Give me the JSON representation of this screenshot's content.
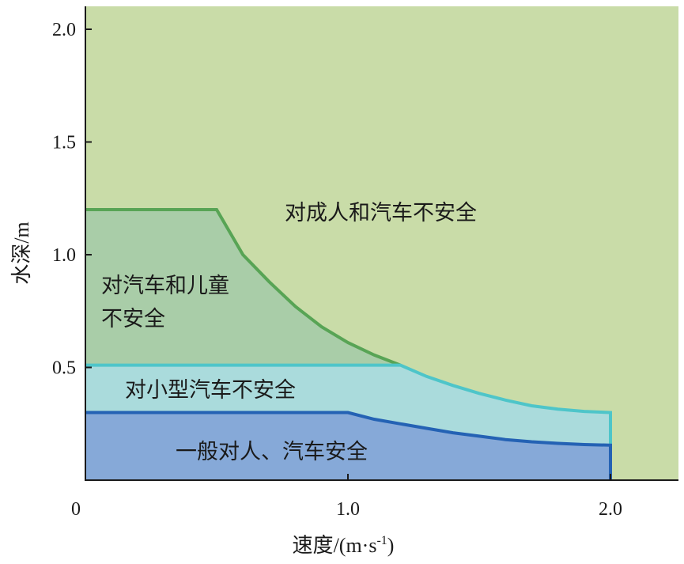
{
  "chart_data": {
    "type": "area",
    "xlabel_prefix": "速度",
    "xlabel_unit": "/(m·s",
    "xlabel_sup": "-1",
    "xlabel_close": ")",
    "ylabel_prefix": "水深",
    "ylabel_unit": "/m",
    "xlim": [
      0,
      2.25
    ],
    "ylim": [
      0,
      2.1
    ],
    "x_ticks": [
      {
        "value": 0,
        "label": "0"
      },
      {
        "value": 1.0,
        "label": "1.0"
      },
      {
        "value": 2.0,
        "label": "2.0"
      }
    ],
    "y_ticks": [
      {
        "value": 0.5,
        "label": "0.5"
      },
      {
        "value": 1.0,
        "label": "1.0"
      },
      {
        "value": 1.5,
        "label": "1.5"
      },
      {
        "value": 2.0,
        "label": "2.0"
      }
    ],
    "grid": false,
    "colors": {
      "background_region": "#c9dca8",
      "children_region": "#a9cda8",
      "small_car_region": "#aadbdc",
      "safe_region": "#86a9d8",
      "adult_boundary": "#58a455",
      "small_car_boundary": "#4ec5c9",
      "safe_boundary": "#2462b4"
    },
    "boundaries": [
      {
        "name": "adult",
        "x": [
          0,
          0.5,
          0.55,
          0.6,
          0.7,
          0.8,
          0.9,
          1.0,
          1.1,
          1.2
        ],
        "y": [
          1.2,
          1.2,
          1.1,
          1.0,
          0.88,
          0.77,
          0.68,
          0.61,
          0.555,
          0.51
        ]
      },
      {
        "name": "small_car",
        "x": [
          0,
          1.2,
          1.3,
          1.4,
          1.5,
          1.6,
          1.7,
          1.8,
          1.9,
          2.0
        ],
        "y": [
          0.51,
          0.51,
          0.46,
          0.42,
          0.385,
          0.355,
          0.33,
          0.315,
          0.305,
          0.3
        ]
      },
      {
        "name": "safe",
        "x": [
          0,
          1.0,
          1.1,
          1.2,
          1.3,
          1.4,
          1.5,
          1.6,
          1.7,
          1.8,
          1.9,
          2.0
        ],
        "y": [
          0.3,
          0.3,
          0.27,
          0.25,
          0.23,
          0.21,
          0.195,
          0.18,
          0.17,
          0.163,
          0.158,
          0.155
        ]
      }
    ],
    "annotations": {
      "adult_car": "对成人和汽车不安全",
      "car_child_line1": "对汽车和儿童",
      "car_child_line2": "不安全",
      "small_car": "对小型汽车不安全",
      "safe": "一般对人、汽车安全"
    }
  }
}
